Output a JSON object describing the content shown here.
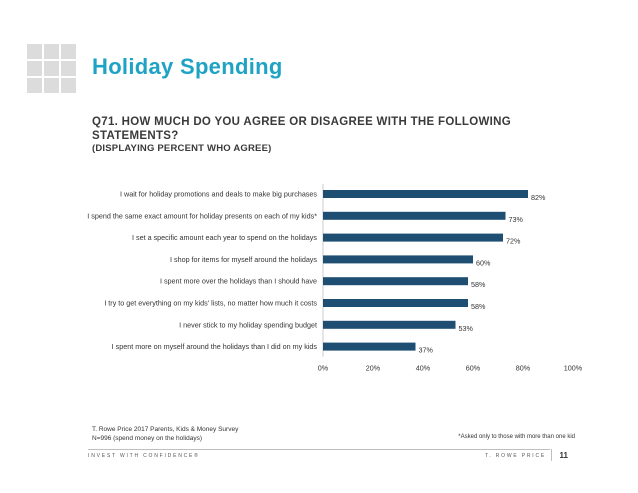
{
  "header": {
    "title": "Holiday Spending",
    "question": "Q71. HOW MUCH DO YOU AGREE OR DISAGREE WITH THE FOLLOWING STATEMENTS?",
    "subtitle": "(DISPLAYING PERCENT WHO AGREE)"
  },
  "colors": {
    "title": "#1fa3c4",
    "bar": "#1e4f72",
    "text": "#333333",
    "axis": "#bfbfbf"
  },
  "chart_data": {
    "type": "bar",
    "orientation": "horizontal",
    "categories": [
      "I wait for holiday promotions and deals to make big purchases",
      "I spend the same exact amount for holiday presents on each of my kids*",
      "I set a specific amount each year to spend on the holidays",
      "I shop for items for myself around the holidays",
      "I spent more over the holidays than I should have",
      "I try to get everything on my kids' lists, no matter how much it costs",
      "I never stick to my holiday spending budget",
      "I spent more on myself around the holidays than I did on my kids"
    ],
    "values": [
      82,
      73,
      72,
      60,
      58,
      58,
      53,
      37
    ],
    "value_labels": [
      "82%",
      "73%",
      "72%",
      "60%",
      "58%",
      "58%",
      "53%",
      "37%"
    ],
    "xlim": [
      0,
      100
    ],
    "x_ticks": [
      "0%",
      "20%",
      "40%",
      "60%",
      "80%",
      "100%"
    ],
    "grid": false,
    "legend": "none"
  },
  "footer": {
    "source": "T. Rowe Price 2017 Parents, Kids & Money Survey",
    "sample": "N=996 (spend money on the holidays)",
    "note": "*Asked only to those with more than one kid",
    "tagline": "INVEST WITH CONFIDENCE®",
    "brand": "T. ROWE PRICE",
    "page": "11"
  }
}
